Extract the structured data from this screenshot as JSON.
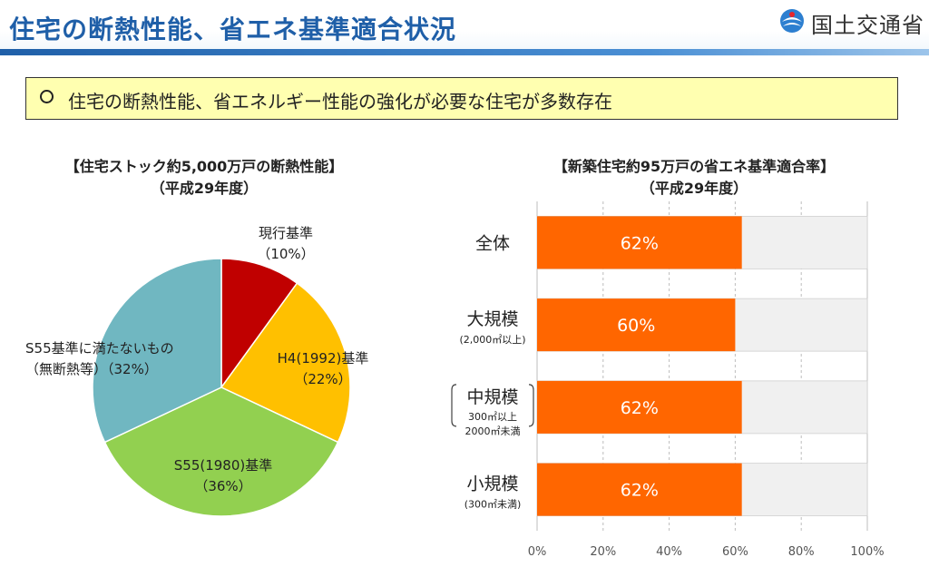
{
  "header": {
    "title": "住宅の断熱性能、省エネ基準適合状況",
    "ministry": "国土交通省"
  },
  "banner": {
    "bullet": "○",
    "text": "住宅の断熱性能、省エネルギー性能の強化が必要な住宅が多数存在"
  },
  "chart_data": [
    {
      "type": "pie",
      "title": "【住宅ストック約5,000万戸の断熱性能】",
      "subtitle": "（平成29年度）",
      "slices": [
        {
          "label": "現行基準",
          "pct_label": "（10%）",
          "value": 10,
          "color": "#c00000"
        },
        {
          "label": "H4(1992)基準",
          "pct_label": "（22%）",
          "value": 22,
          "color": "#ffc000"
        },
        {
          "label": "S55(1980)基準",
          "pct_label": "（36%）",
          "value": 36,
          "color": "#92d050"
        },
        {
          "label": "S55基準に満たないもの",
          "pct_label": "（無断熱等）（32%）",
          "value": 32,
          "color": "#70b7c1"
        }
      ]
    },
    {
      "type": "bar",
      "orientation": "horizontal",
      "stacked_to": 100,
      "title": "【新築住宅約95万戸の省エネ基準適合率】",
      "subtitle": "（平成29年度）",
      "xlim": [
        0,
        100
      ],
      "xticks": [
        "0%",
        "20%",
        "40%",
        "60%",
        "80%",
        "100%"
      ],
      "grid": true,
      "categories": [
        {
          "label": "全体",
          "sub": []
        },
        {
          "label": "大規模",
          "sub": [
            "(2,000㎡以上)"
          ]
        },
        {
          "label": "中規模",
          "sub": [
            "300㎡以上",
            "2000㎡未満"
          ]
        },
        {
          "label": "小規模",
          "sub": [
            "(300㎡未満)"
          ]
        }
      ],
      "values": [
        62,
        60,
        62,
        62
      ],
      "value_labels": [
        "62%",
        "60%",
        "62%",
        "62%"
      ],
      "fill_color": "#ff6600",
      "remainder_color": "#f0f0f0"
    }
  ]
}
